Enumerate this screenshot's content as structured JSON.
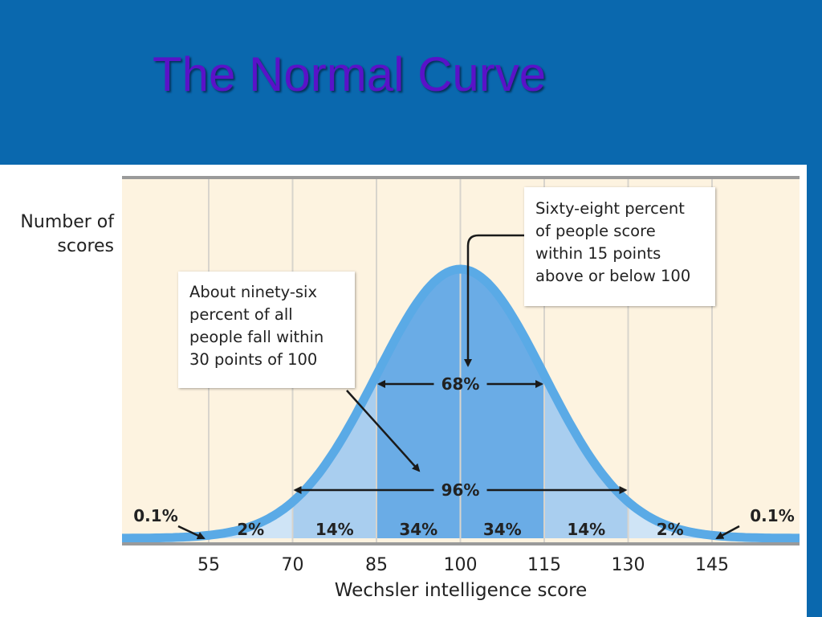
{
  "slide": {
    "title": "The Normal Curve"
  },
  "chart_data": {
    "type": "area",
    "xlabel": "Wechsler intelligence score",
    "ylabel": "Number of\nscores",
    "mean": 100,
    "sd": 15,
    "x_ticks": [
      55,
      70,
      85,
      100,
      115,
      130,
      145
    ],
    "segments": [
      {
        "from": 55,
        "to": 70,
        "label": "2%"
      },
      {
        "from": 70,
        "to": 85,
        "label": "14%"
      },
      {
        "from": 85,
        "to": 100,
        "label": "34%"
      },
      {
        "from": 100,
        "to": 115,
        "label": "34%"
      },
      {
        "from": 115,
        "to": 130,
        "label": "14%"
      },
      {
        "from": 130,
        "to": 145,
        "label": "2%"
      }
    ],
    "tails": [
      {
        "side": "left",
        "label": "0.1%"
      },
      {
        "side": "right",
        "label": "0.1%"
      }
    ],
    "ranges": [
      {
        "from": 85,
        "to": 115,
        "label": "68%"
      },
      {
        "from": 70,
        "to": 130,
        "label": "96%"
      }
    ],
    "annotations": [
      {
        "id": "ninety-six",
        "text": "About ninety-six\npercent of all\npeople fall within\n30 points of 100"
      },
      {
        "id": "sixty-eight",
        "text": "Sixty-eight percent\nof people score\nwithin 15 points\nabove or below 100"
      }
    ],
    "colors": {
      "background": "#fdf3e0",
      "gridline": "#d8d4cc",
      "curve": "#5aaae6",
      "fill_center": "#6aace6",
      "fill_inner": "#a9ceef",
      "fill_outer": "#cfe4f6",
      "fill_tail": "#e2eef8",
      "axis": "#9a9a9a"
    }
  }
}
